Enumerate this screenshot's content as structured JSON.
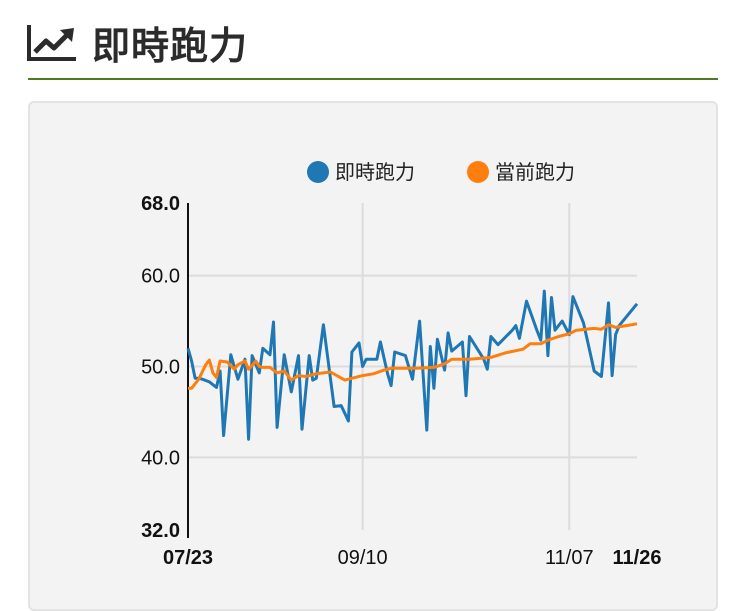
{
  "page": {
    "title": "即時跑力",
    "title_icon": "line-chart-icon"
  },
  "colors": {
    "accent_rule": "#4f7a21",
    "series_instant": "#1f77b4",
    "series_current": "#ff7f0e"
  },
  "chart_data": {
    "type": "line",
    "title": "",
    "xlabel": "",
    "ylabel": "",
    "ylim": [
      32.0,
      68.0
    ],
    "y_ticks": [
      "68.0",
      "60.0",
      "50.0",
      "40.0",
      "32.0"
    ],
    "x_ticks": [
      "07/23",
      "09/10",
      "11/07",
      "11/26"
    ],
    "grid": true,
    "legend_position": "top",
    "series": [
      {
        "name": "即時跑力",
        "color": "#1f77b4",
        "points": [
          [
            "07/23",
            52.0
          ],
          [
            "07/24",
            50.6
          ],
          [
            "07/25",
            48.7
          ],
          [
            "07/26",
            48.7
          ],
          [
            "07/27",
            48.6
          ],
          [
            "07/29",
            48.3
          ],
          [
            "07/31",
            47.7
          ],
          [
            "08/01",
            49.5
          ],
          [
            "08/02",
            42.4
          ],
          [
            "08/04",
            51.3
          ],
          [
            "08/06",
            48.6
          ],
          [
            "08/08",
            50.8
          ],
          [
            "08/09",
            42.0
          ],
          [
            "08/10",
            51.2
          ],
          [
            "08/12",
            49.3
          ],
          [
            "08/13",
            52.0
          ],
          [
            "08/15",
            51.3
          ],
          [
            "08/16",
            54.9
          ],
          [
            "08/17",
            43.3
          ],
          [
            "08/19",
            51.3
          ],
          [
            "08/21",
            47.2
          ],
          [
            "08/23",
            51.2
          ],
          [
            "08/24",
            43.1
          ],
          [
            "08/26",
            51.2
          ],
          [
            "08/27",
            48.5
          ],
          [
            "08/28",
            48.7
          ],
          [
            "08/30",
            54.6
          ],
          [
            "09/02",
            45.6
          ],
          [
            "09/04",
            45.7
          ],
          [
            "09/06",
            44.0
          ],
          [
            "09/07",
            51.6
          ],
          [
            "09/09",
            52.6
          ],
          [
            "09/10",
            50.0
          ],
          [
            "09/11",
            50.8
          ],
          [
            "09/14",
            50.8
          ],
          [
            "09/15",
            52.7
          ],
          [
            "09/17",
            49.2
          ],
          [
            "09/18",
            47.9
          ],
          [
            "09/19",
            51.6
          ],
          [
            "09/22",
            51.2
          ],
          [
            "09/24",
            48.6
          ],
          [
            "09/26",
            55.0
          ],
          [
            "09/28",
            43.0
          ],
          [
            "09/29",
            52.2
          ],
          [
            "09/30",
            47.6
          ],
          [
            "10/01",
            53.0
          ],
          [
            "10/03",
            49.6
          ],
          [
            "10/04",
            53.7
          ],
          [
            "10/05",
            51.7
          ],
          [
            "10/08",
            52.7
          ],
          [
            "10/09",
            46.8
          ],
          [
            "10/10",
            53.3
          ],
          [
            "10/14",
            50.8
          ],
          [
            "10/15",
            49.7
          ],
          [
            "10/16",
            53.3
          ],
          [
            "10/18",
            52.4
          ],
          [
            "10/22",
            54.0
          ],
          [
            "10/23",
            54.5
          ],
          [
            "10/24",
            53.1
          ],
          [
            "10/26",
            57.2
          ],
          [
            "10/29",
            53.9
          ],
          [
            "10/30",
            52.9
          ],
          [
            "10/31",
            58.3
          ],
          [
            "11/01",
            51.2
          ],
          [
            "11/02",
            57.6
          ],
          [
            "11/03",
            54.0
          ],
          [
            "11/04",
            54.5
          ],
          [
            "11/05",
            55.0
          ],
          [
            "11/07",
            53.5
          ],
          [
            "11/08",
            57.7
          ],
          [
            "11/11",
            54.8
          ],
          [
            "11/14",
            49.5
          ],
          [
            "11/16",
            48.9
          ],
          [
            "11/18",
            57.0
          ],
          [
            "11/19",
            49.0
          ],
          [
            "11/20",
            53.5
          ],
          [
            "11/21",
            54.5
          ],
          [
            "11/26",
            56.9
          ]
        ]
      },
      {
        "name": "當前跑力",
        "color": "#ff7f0e",
        "points": [
          [
            "07/23",
            47.6
          ],
          [
            "07/24",
            47.6
          ],
          [
            "07/26",
            48.6
          ],
          [
            "07/28",
            50.2
          ],
          [
            "07/29",
            50.7
          ],
          [
            "07/30",
            49.3
          ],
          [
            "07/31",
            48.8
          ],
          [
            "08/01",
            50.6
          ],
          [
            "08/03",
            50.5
          ],
          [
            "08/05",
            49.7
          ],
          [
            "08/06",
            50.2
          ],
          [
            "08/08",
            50.6
          ],
          [
            "08/09",
            49.7
          ],
          [
            "08/10",
            50.1
          ],
          [
            "08/11",
            50.6
          ],
          [
            "08/12",
            50.0
          ],
          [
            "08/13",
            49.9
          ],
          [
            "08/15",
            49.9
          ],
          [
            "08/17",
            49.3
          ],
          [
            "08/19",
            49.5
          ],
          [
            "08/21",
            48.5
          ],
          [
            "08/23",
            49.0
          ],
          [
            "08/25",
            48.9
          ],
          [
            "08/28",
            49.2
          ],
          [
            "09/01",
            49.4
          ],
          [
            "09/05",
            48.5
          ],
          [
            "09/10",
            49.0
          ],
          [
            "09/13",
            49.2
          ],
          [
            "09/16",
            49.6
          ],
          [
            "09/18",
            49.8
          ],
          [
            "09/21",
            49.8
          ],
          [
            "09/25",
            49.8
          ],
          [
            "09/30",
            49.9
          ],
          [
            "10/03",
            50.3
          ],
          [
            "10/05",
            50.8
          ],
          [
            "10/10",
            50.8
          ],
          [
            "10/16",
            51.0
          ],
          [
            "10/20",
            51.5
          ],
          [
            "10/25",
            51.9
          ],
          [
            "10/27",
            52.5
          ],
          [
            "10/30",
            52.5
          ],
          [
            "11/01",
            52.9
          ],
          [
            "11/04",
            53.3
          ],
          [
            "11/07",
            53.6
          ],
          [
            "11/09",
            54.0
          ],
          [
            "11/14",
            54.2
          ],
          [
            "11/16",
            54.1
          ],
          [
            "11/18",
            54.6
          ],
          [
            "11/20",
            54.3
          ],
          [
            "11/23",
            54.5
          ],
          [
            "11/26",
            54.7
          ]
        ]
      }
    ]
  }
}
